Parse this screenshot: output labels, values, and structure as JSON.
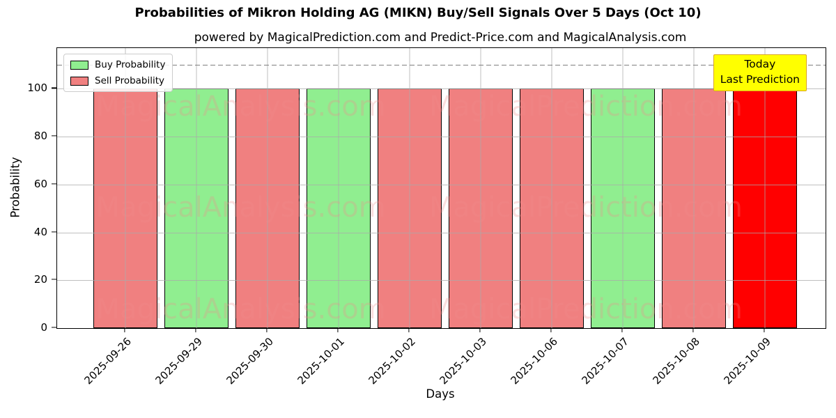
{
  "title": "Probabilities of Mikron Holding AG (MIKN) Buy/Sell Signals Over 5 Days (Oct 10)",
  "subtitle": "powered by MagicalPrediction.com and Predict-Price.com and MagicalAnalysis.com",
  "legend": {
    "items": [
      {
        "label": "Buy Probability",
        "color_key": "buy"
      },
      {
        "label": "Sell Probability",
        "color_key": "sell"
      }
    ]
  },
  "annotation": {
    "line1": "Today",
    "line2": "Last Prediction"
  },
  "watermarks": {
    "left_text": "MagicalAnalysis.com",
    "right_text": "MagicalPrediction.com"
  },
  "colors": {
    "buy": "#90EE90",
    "sell": "#F08080",
    "today": "#FF0000",
    "bar_edge": "#000000",
    "annotation_bg": "#FFFF00",
    "annotation_border": "#DAA520",
    "grid": "#A9A9A9",
    "dashed_line": "#7F7F7F",
    "watermark": "rgba(240,140,140,0.28)"
  },
  "chart_data": {
    "type": "bar",
    "title": "Probabilities of Mikron Holding AG (MIKN) Buy/Sell Signals Over 5 Days (Oct 10)",
    "xlabel": "Days",
    "ylabel": "Probability",
    "ylim": [
      0,
      117
    ],
    "yticks": [
      0,
      20,
      40,
      60,
      80,
      100
    ],
    "dashed_line_y": 110,
    "grid": true,
    "legend_position": "upper left",
    "categories": [
      "2025-09-26",
      "2025-09-29",
      "2025-09-30",
      "2025-10-01",
      "2025-10-02",
      "2025-10-03",
      "2025-10-06",
      "2025-10-07",
      "2025-10-08",
      "2025-10-09"
    ],
    "bars": [
      {
        "date": "2025-09-26",
        "value": 100,
        "signal": "sell"
      },
      {
        "date": "2025-09-29",
        "value": 100,
        "signal": "buy"
      },
      {
        "date": "2025-09-30",
        "value": 100,
        "signal": "sell"
      },
      {
        "date": "2025-10-01",
        "value": 100,
        "signal": "buy"
      },
      {
        "date": "2025-10-02",
        "value": 100,
        "signal": "sell"
      },
      {
        "date": "2025-10-03",
        "value": 100,
        "signal": "sell"
      },
      {
        "date": "2025-10-06",
        "value": 100,
        "signal": "sell"
      },
      {
        "date": "2025-10-07",
        "value": 100,
        "signal": "buy"
      },
      {
        "date": "2025-10-08",
        "value": 100,
        "signal": "sell"
      },
      {
        "date": "2025-10-09",
        "value": 100,
        "signal": "today"
      }
    ],
    "series": [
      {
        "name": "Buy Probability",
        "values": [
          0,
          100,
          0,
          100,
          0,
          0,
          0,
          100,
          0,
          0
        ]
      },
      {
        "name": "Sell Probability",
        "values": [
          100,
          0,
          100,
          0,
          100,
          100,
          100,
          0,
          100,
          0
        ]
      },
      {
        "name": "Today Last Prediction",
        "values": [
          0,
          0,
          0,
          0,
          0,
          0,
          0,
          0,
          0,
          100
        ]
      }
    ]
  }
}
